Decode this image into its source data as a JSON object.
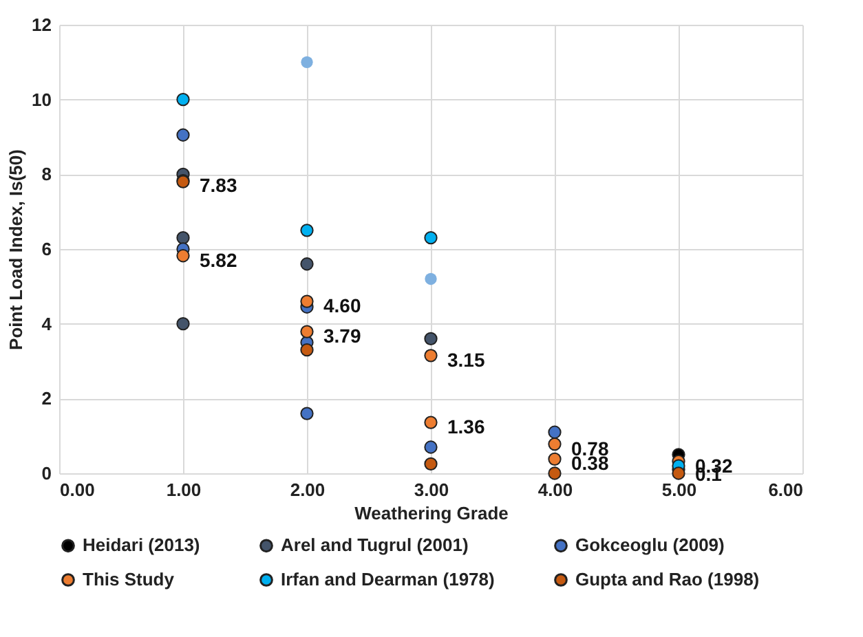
{
  "chart_data": {
    "type": "scatter",
    "xlabel": "Weathering Grade",
    "ylabel": "Point Load Index, Is(50)",
    "xlim": [
      0,
      6
    ],
    "xticks": [
      {
        "value": 0,
        "label": "0.00"
      },
      {
        "value": 1,
        "label": "1.00"
      },
      {
        "value": 2,
        "label": "2.00"
      },
      {
        "value": 3,
        "label": "3.00"
      },
      {
        "value": 4,
        "label": "4.00"
      },
      {
        "value": 5,
        "label": "5.00"
      },
      {
        "value": 6,
        "label": "6.00"
      }
    ],
    "ylim": [
      0,
      12
    ],
    "yticks": [
      0,
      2,
      4,
      6,
      8,
      10,
      12
    ],
    "grid": true,
    "legend": "bottom",
    "marker": "circle",
    "series": [
      {
        "color": "#7eb0e0",
        "x": [
          2,
          3
        ],
        "values": [
          11,
          5.2
        ]
      },
      {
        "name": "Heidari (2013)",
        "color": "#000000",
        "x": [
          5
        ],
        "values": [
          0.5
        ]
      },
      {
        "name": "Arel and Tugrul (2001)",
        "color": "#44546a",
        "x": [
          1,
          1,
          1,
          2,
          3
        ],
        "values": [
          8.0,
          6.3,
          4.0,
          5.6,
          3.6
        ]
      },
      {
        "name": "Gokceoglu (2009)",
        "color": "#4472c4",
        "x": [
          1,
          1,
          2,
          2,
          2,
          3,
          4
        ],
        "values": [
          9.05,
          6.0,
          4.45,
          3.5,
          1.6,
          0.7,
          1.1
        ]
      },
      {
        "name": "This Study",
        "color": "#ed7d31",
        "x": [
          1,
          1,
          2,
          2,
          3,
          3,
          4,
          4,
          5,
          5
        ],
        "values": [
          7.83,
          5.82,
          4.6,
          3.79,
          3.15,
          1.36,
          0.78,
          0.38,
          0.32,
          0.1
        ],
        "value_labels": [
          "7.83",
          "5.82",
          "4.60",
          "3.79",
          "3.15",
          "1.36",
          "0.78",
          "0.38",
          "0.32",
          "0.1"
        ]
      },
      {
        "name": "Irfan and Dearman (1978)",
        "color": "#00b0f0",
        "x": [
          1,
          2,
          3,
          5
        ],
        "values": [
          10,
          6.5,
          6.3,
          0.2
        ]
      },
      {
        "name": "Gupta and Rao (1998)",
        "color": "#c55a11",
        "x": [
          1,
          2,
          3,
          4,
          5
        ],
        "values": [
          7.8,
          3.3,
          0.25,
          0,
          0
        ]
      }
    ]
  }
}
